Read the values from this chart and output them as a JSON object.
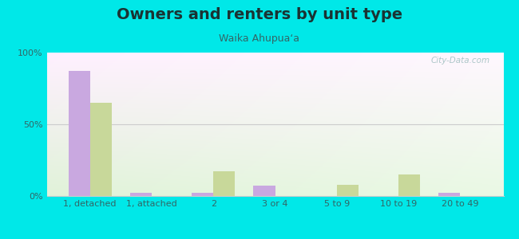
{
  "title": "Owners and renters by unit type",
  "subtitle": "Waika Ahupuaʻa",
  "categories": [
    "1, detached",
    "1, attached",
    "2",
    "3 or 4",
    "5 to 9",
    "10 to 19",
    "20 to 49"
  ],
  "owner_values": [
    87,
    2,
    2,
    7,
    0,
    0,
    2
  ],
  "renter_values": [
    65,
    0,
    17,
    0,
    8,
    15,
    0
  ],
  "owner_color": "#c9a8e0",
  "renter_color": "#c8d89a",
  "outer_background": "#00e8e8",
  "ylim": [
    0,
    100
  ],
  "yticks": [
    0,
    50,
    100
  ],
  "ytick_labels": [
    "0%",
    "50%",
    "100%"
  ],
  "bar_width": 0.35,
  "title_fontsize": 14,
  "subtitle_fontsize": 9,
  "watermark": "City-Data.com"
}
